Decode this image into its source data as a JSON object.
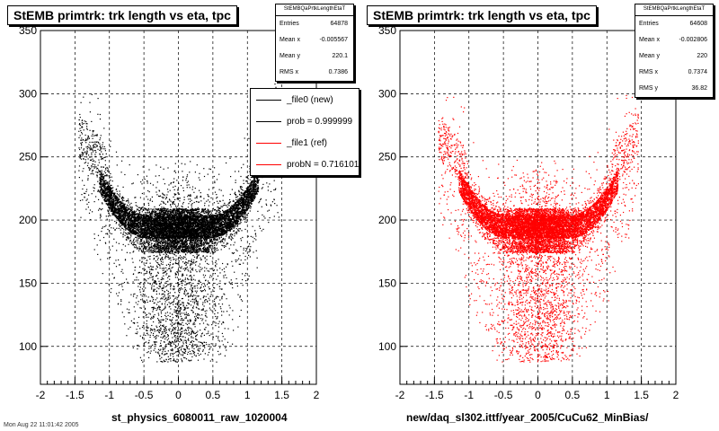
{
  "chart_data": [
    {
      "type": "scatter",
      "title": "StEMB primtrk: trk length vs eta, tpc",
      "xlabel": "st_physics_6080011_raw_1020004",
      "xlim": [
        -2,
        2
      ],
      "ylim": [
        70,
        350
      ],
      "x_ticks": [
        "-2",
        "-1.5",
        "-1",
        "-0.5",
        "0",
        "0.5",
        "1",
        "1.5",
        "2"
      ],
      "y_ticks": [
        "100",
        "150",
        "200",
        "250",
        "300",
        "350"
      ],
      "grid": true,
      "color": "#000000",
      "stats": {
        "name": "StEMBQaPrtkLengthEtaT",
        "rows": [
          {
            "label": "Entries",
            "value": "64878"
          },
          {
            "label": "Mean x",
            "value": "-0.005567"
          },
          {
            "label": "Mean y",
            "value": "220.1"
          },
          {
            "label": "RMS x",
            "value": "0.7386"
          }
        ]
      },
      "legend": {
        "placement": "top-right",
        "entries": [
          {
            "label": "_file0 (new)",
            "color": "#000000"
          },
          {
            "label": "prob = 0.999999",
            "color": "#000000"
          },
          {
            "label": "_file1 (ref)",
            "color": "#ff0000"
          },
          {
            "label": "probN = 0.716101",
            "color": "#ff0000"
          }
        ]
      }
    },
    {
      "type": "scatter",
      "title": "StEMB primtrk: trk length vs eta, tpc",
      "xlabel": "new/daq_sl302.ittf/year_2005/CuCu62_MinBias/",
      "xlim": [
        -2,
        2
      ],
      "ylim": [
        70,
        350
      ],
      "x_ticks": [
        "-2",
        "-1.5",
        "-1",
        "-0.5",
        "0",
        "0.5",
        "1",
        "1.5",
        "2"
      ],
      "y_ticks": [
        "100",
        "150",
        "200",
        "250",
        "300",
        "350"
      ],
      "grid": true,
      "color": "#ff0000",
      "stats": {
        "name": "StEMBQaPrtkLengthEtaT",
        "rows": [
          {
            "label": "Entries",
            "value": "64608"
          },
          {
            "label": "Mean x",
            "value": "-0.002806"
          },
          {
            "label": "Mean y",
            "value": "220"
          },
          {
            "label": "RMS x",
            "value": "0.7374"
          },
          {
            "label": "RMS y",
            "value": "36.82"
          }
        ]
      }
    }
  ],
  "footer": "Mon Aug 22 11:01:42 2005"
}
